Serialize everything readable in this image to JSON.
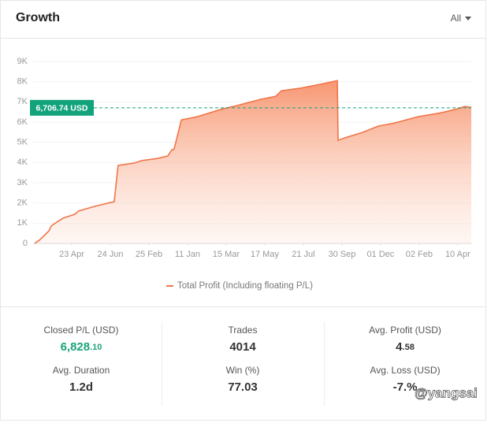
{
  "header": {
    "title": "Growth",
    "filter": "All"
  },
  "chart_data": {
    "type": "area",
    "x": [
      0.04,
      0.16,
      0.31,
      0.41,
      0.47,
      0.61,
      0.78,
      1.08,
      1.18,
      1.59,
      2.0,
      2.1,
      2.2,
      2.24,
      2.61,
      2.82,
      3.22,
      3.49,
      3.59,
      3.65,
      3.71,
      3.84,
      4.24,
      4.45,
      4.9,
      5.27,
      5.88,
      6.29,
      6.43,
      6.9,
      7.31,
      7.71,
      7.88,
      7.9,
      8.12,
      8.53,
      8.94,
      9.35,
      9.96,
      10.57,
      10.98,
      11.18,
      11.35
    ],
    "series": [
      {
        "name": "Total Profit (Including floating P/L)",
        "color": "#f0764b",
        "values": [
          0,
          150,
          430,
          620,
          860,
          1050,
          1250,
          1440,
          1600,
          1830,
          2020,
          2060,
          3850,
          3870,
          3970,
          4100,
          4200,
          4330,
          4630,
          4650,
          5100,
          6110,
          6260,
          6380,
          6650,
          6810,
          7120,
          7280,
          7550,
          7670,
          7820,
          7980,
          8050,
          5100,
          5250,
          5490,
          5800,
          5950,
          6260,
          6460,
          6650,
          6770,
          6730
        ]
      }
    ],
    "xlim": [
      0,
      11.35
    ],
    "xticks": [
      {
        "value": 1,
        "label": "23 Apr"
      },
      {
        "value": 2,
        "label": "24 Jun"
      },
      {
        "value": 3,
        "label": "25 Feb"
      },
      {
        "value": 4,
        "label": "11 Jan"
      },
      {
        "value": 5,
        "label": "15 Mar"
      },
      {
        "value": 6,
        "label": "17 May"
      },
      {
        "value": 7,
        "label": "21 Jul"
      },
      {
        "value": 8,
        "label": "30 Sep"
      },
      {
        "value": 9,
        "label": "01 Dec"
      },
      {
        "value": 10,
        "label": "02 Feb"
      },
      {
        "value": 11,
        "label": "10 Apr"
      }
    ],
    "ylim": [
      0,
      9000
    ],
    "yticks": [
      0,
      {
        "value": 1000,
        "label": "1K"
      },
      {
        "value": 2000,
        "label": "2K"
      },
      {
        "value": 3000,
        "label": "3K"
      },
      {
        "value": 4000,
        "label": "4K"
      },
      {
        "value": 5000,
        "label": "5K"
      },
      {
        "value": 6000,
        "label": "6K"
      },
      {
        "value": 7000,
        "label": "7K"
      },
      {
        "value": 8000,
        "label": "8K"
      },
      {
        "value": 9000,
        "label": "9K"
      }
    ],
    "grid": true,
    "reference": {
      "value": 6706.74,
      "label": "6,706.74 USD",
      "color": "#13a37c"
    }
  },
  "stats": [
    {
      "label": "Closed P/L (USD)",
      "value": "6,828",
      "decimals": ".10",
      "color": "#1aa37a"
    },
    {
      "label": "Trades",
      "value": "4014",
      "color": "#333333"
    },
    {
      "label": "Avg. Profit (USD)",
      "value": "4",
      "decimals": ".58",
      "color": "#333333"
    },
    {
      "label": "Avg. Duration",
      "value": "1.2d",
      "color": "#333333"
    },
    {
      "label": "Win (%)",
      "value": "77.03",
      "color": "#333333"
    },
    {
      "label": "Avg. Loss (USD)",
      "value": "-7.%",
      "color": "#333333"
    }
  ],
  "watermark": "@yangsai"
}
